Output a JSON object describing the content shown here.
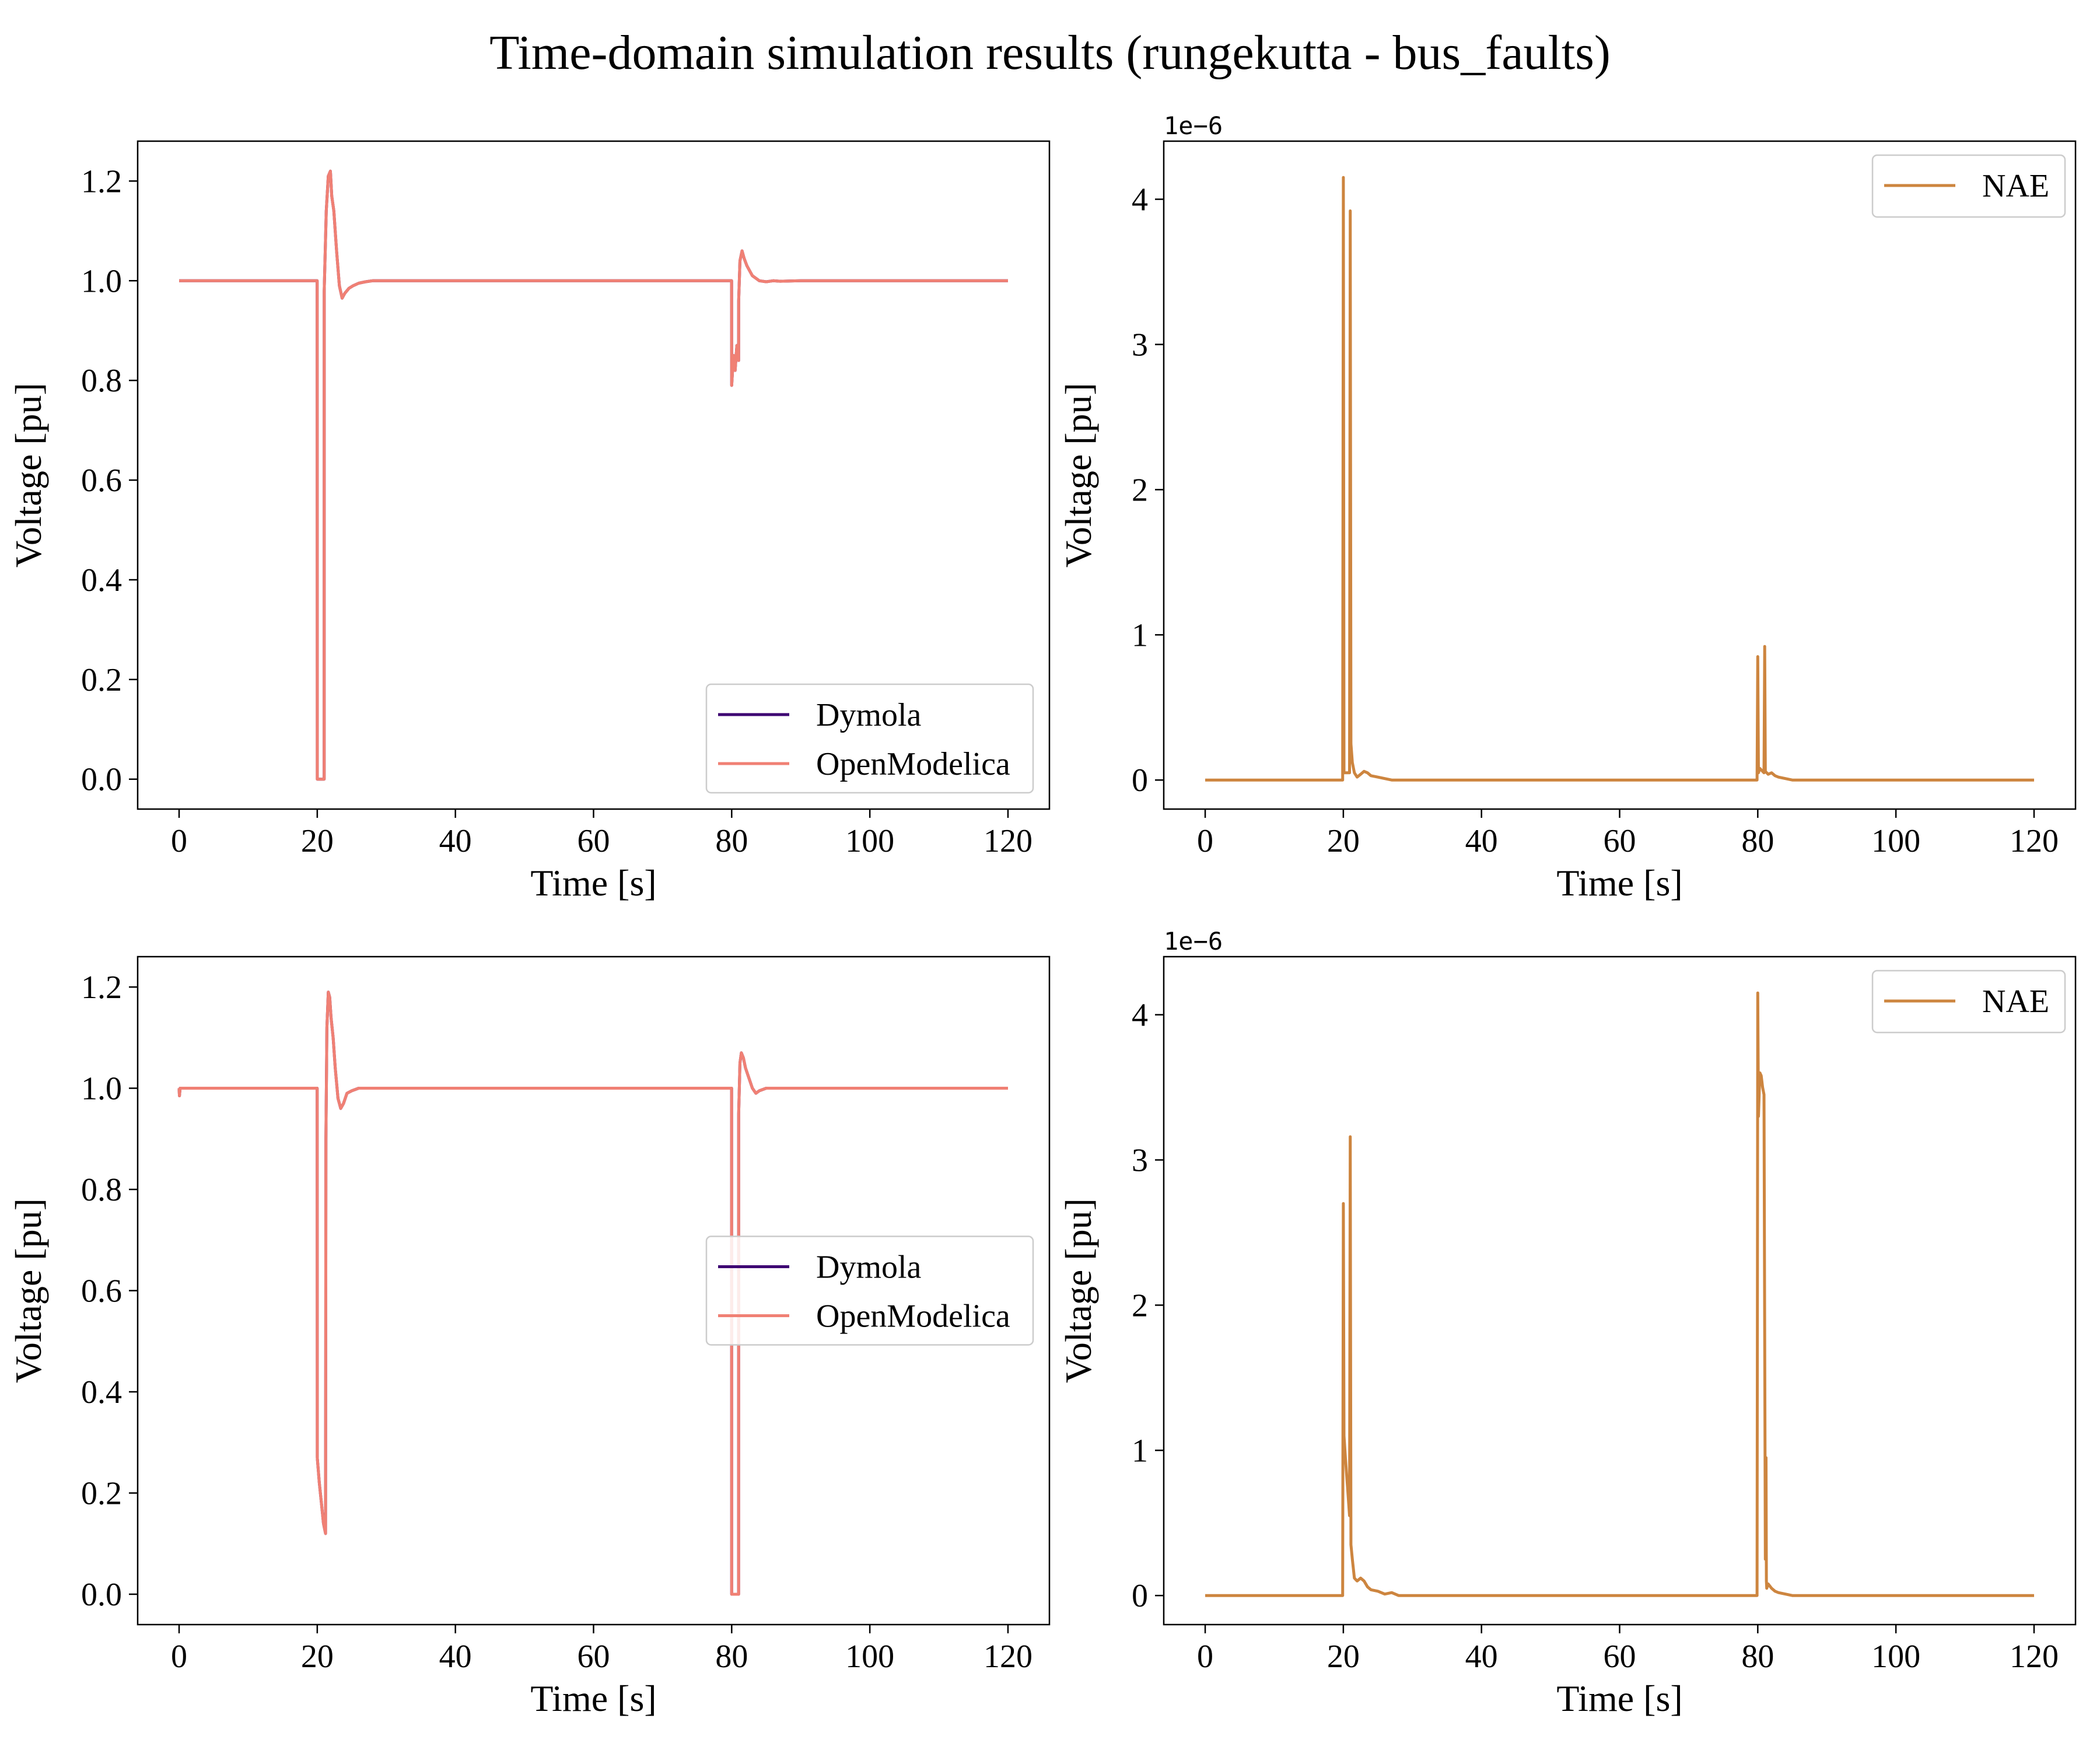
{
  "figure": {
    "title": "Time-domain simulation results (rungekutta - bus_faults)"
  },
  "colors": {
    "dymola": "#3d0072",
    "openmodelica": "#f08074",
    "nae": "#cd853f"
  },
  "chart_data": [
    {
      "type": "line",
      "xlabel": "Time [s]",
      "ylabel": "Voltage [pu]",
      "xlim": [
        -6,
        126
      ],
      "ylim": [
        -0.06,
        1.28
      ],
      "xticks": [
        0,
        20,
        40,
        60,
        80,
        100,
        120
      ],
      "yticks": [
        0.0,
        0.2,
        0.4,
        0.6,
        0.8,
        1.0,
        1.2
      ],
      "ytick_labels": [
        "0.0",
        "0.2",
        "0.4",
        "0.6",
        "0.8",
        "1.0",
        "1.2"
      ],
      "offset_label": "",
      "legend_position": "lower right",
      "series": [
        {
          "name": "Dymola",
          "color": "dymola",
          "x": [
            0,
            19.99,
            20.0,
            21.0,
            21.01,
            21.3,
            21.6,
            21.9,
            22.1,
            22.4,
            22.8,
            23.2,
            23.6,
            24.0,
            24.6,
            25.2,
            26.0,
            27.0,
            28.0,
            30.0,
            35.0,
            40.0,
            60.0,
            79.99,
            80.0,
            80.25,
            80.5,
            80.75,
            81.0,
            81.01,
            81.2,
            81.5,
            81.8,
            82.2,
            82.6,
            83.0,
            83.5,
            84.0,
            85.0,
            86.0,
            87.0,
            90.0,
            100.0,
            120.0
          ],
          "y": [
            1.0,
            1.0,
            0.0,
            0.0,
            0.98,
            1.14,
            1.21,
            1.22,
            1.17,
            1.14,
            1.06,
            0.99,
            0.965,
            0.975,
            0.985,
            0.99,
            0.995,
            0.998,
            1.0,
            1.0,
            1.0,
            1.0,
            1.0,
            1.0,
            0.79,
            0.85,
            0.82,
            0.87,
            0.84,
            0.96,
            1.04,
            1.06,
            1.045,
            1.03,
            1.02,
            1.01,
            1.005,
            1.0,
            0.998,
            1.0,
            0.999,
            1.0,
            1.0,
            1.0
          ]
        },
        {
          "name": "OpenModelica",
          "color": "openmodelica",
          "x": [
            0,
            19.99,
            20.0,
            21.0,
            21.01,
            21.3,
            21.6,
            21.9,
            22.1,
            22.4,
            22.8,
            23.2,
            23.6,
            24.0,
            24.6,
            25.2,
            26.0,
            27.0,
            28.0,
            30.0,
            35.0,
            40.0,
            60.0,
            79.99,
            80.0,
            80.25,
            80.5,
            80.75,
            81.0,
            81.01,
            81.2,
            81.5,
            81.8,
            82.2,
            82.6,
            83.0,
            83.5,
            84.0,
            85.0,
            86.0,
            87.0,
            90.0,
            100.0,
            120.0
          ],
          "y": [
            1.0,
            1.0,
            0.0,
            0.0,
            0.98,
            1.14,
            1.21,
            1.22,
            1.17,
            1.14,
            1.06,
            0.99,
            0.965,
            0.975,
            0.985,
            0.99,
            0.995,
            0.998,
            1.0,
            1.0,
            1.0,
            1.0,
            1.0,
            1.0,
            0.79,
            0.85,
            0.82,
            0.87,
            0.84,
            0.96,
            1.04,
            1.06,
            1.045,
            1.03,
            1.02,
            1.01,
            1.005,
            1.0,
            0.998,
            1.0,
            0.999,
            1.0,
            1.0,
            1.0
          ]
        }
      ]
    },
    {
      "type": "line",
      "xlabel": "Time [s]",
      "ylabel": "Voltage [pu]",
      "xlim": [
        -6,
        126
      ],
      "ylim": [
        -0.2,
        4.4
      ],
      "xticks": [
        0,
        20,
        40,
        60,
        80,
        100,
        120
      ],
      "yticks": [
        0,
        1,
        2,
        3,
        4
      ],
      "ytick_labels": [
        "0",
        "1",
        "2",
        "3",
        "4"
      ],
      "offset_label": "1e−6",
      "legend_position": "upper right",
      "series": [
        {
          "name": "NAE",
          "color": "nae",
          "x": [
            0,
            19.9,
            20.0,
            20.1,
            20.9,
            21.0,
            21.1,
            21.3,
            21.6,
            22.0,
            22.5,
            23.0,
            23.5,
            24.0,
            25.0,
            26.0,
            27.0,
            28.0,
            30.0,
            40.0,
            60.0,
            79.9,
            80.0,
            80.1,
            80.3,
            80.9,
            81.0,
            81.1,
            81.5,
            82.0,
            82.5,
            83.0,
            84.0,
            85.0,
            86.0,
            88.0,
            100.0,
            120.0
          ],
          "y": [
            0,
            0,
            4.15,
            0.05,
            0.05,
            3.92,
            0.25,
            0.12,
            0.05,
            0.02,
            0.04,
            0.06,
            0.05,
            0.03,
            0.02,
            0.01,
            0.0,
            0.0,
            0.0,
            0.0,
            0.0,
            0.0,
            0.85,
            0.05,
            0.08,
            0.05,
            0.92,
            0.06,
            0.04,
            0.05,
            0.03,
            0.02,
            0.01,
            0.0,
            0.0,
            0.0,
            0.0,
            0.0
          ]
        }
      ]
    },
    {
      "type": "line",
      "xlabel": "Time [s]",
      "ylabel": "Voltage [pu]",
      "xlim": [
        -6,
        126
      ],
      "ylim": [
        -0.06,
        1.26
      ],
      "xticks": [
        0,
        20,
        40,
        60,
        80,
        100,
        120
      ],
      "yticks": [
        0.0,
        0.2,
        0.4,
        0.6,
        0.8,
        1.0,
        1.2
      ],
      "ytick_labels": [
        "0.0",
        "0.2",
        "0.4",
        "0.6",
        "0.8",
        "1.0",
        "1.2"
      ],
      "offset_label": "",
      "legend_position": "center right",
      "series": [
        {
          "name": "Dymola",
          "color": "dymola",
          "x": [
            0,
            0.05,
            0.15,
            19.99,
            20.0,
            20.3,
            20.6,
            20.9,
            21.2,
            21.25,
            21.4,
            21.6,
            21.8,
            22.0,
            22.3,
            22.6,
            23.0,
            23.4,
            23.8,
            24.3,
            25.0,
            26.0,
            28.0,
            30.0,
            40.0,
            60.0,
            79.99,
            80.0,
            81.0,
            81.01,
            81.2,
            81.4,
            81.7,
            82.0,
            82.5,
            83.0,
            83.5,
            84.0,
            85.0,
            86.0,
            88.0,
            90.0,
            100.0,
            120.0
          ],
          "y": [
            1.0,
            0.985,
            1.0,
            1.0,
            0.27,
            0.22,
            0.18,
            0.14,
            0.12,
            0.9,
            1.12,
            1.19,
            1.18,
            1.14,
            1.1,
            1.04,
            0.98,
            0.96,
            0.97,
            0.99,
            0.995,
            1.0,
            1.0,
            1.0,
            1.0,
            1.0,
            1.0,
            0.0,
            0.0,
            0.95,
            1.05,
            1.07,
            1.06,
            1.04,
            1.02,
            1.0,
            0.99,
            0.995,
            1.0,
            1.0,
            1.0,
            1.0,
            1.0,
            1.0
          ]
        },
        {
          "name": "OpenModelica",
          "color": "openmodelica",
          "x": [
            0,
            0.05,
            0.15,
            19.99,
            20.0,
            20.3,
            20.6,
            20.9,
            21.2,
            21.25,
            21.4,
            21.6,
            21.8,
            22.0,
            22.3,
            22.6,
            23.0,
            23.4,
            23.8,
            24.3,
            25.0,
            26.0,
            28.0,
            30.0,
            40.0,
            60.0,
            79.99,
            80.0,
            81.0,
            81.01,
            81.2,
            81.4,
            81.7,
            82.0,
            82.5,
            83.0,
            83.5,
            84.0,
            85.0,
            86.0,
            88.0,
            90.0,
            100.0,
            120.0
          ],
          "y": [
            1.0,
            0.985,
            1.0,
            1.0,
            0.27,
            0.22,
            0.18,
            0.14,
            0.12,
            0.9,
            1.12,
            1.19,
            1.18,
            1.14,
            1.1,
            1.04,
            0.98,
            0.96,
            0.97,
            0.99,
            0.995,
            1.0,
            1.0,
            1.0,
            1.0,
            1.0,
            1.0,
            0.0,
            0.0,
            0.95,
            1.05,
            1.07,
            1.06,
            1.04,
            1.02,
            1.0,
            0.99,
            0.995,
            1.0,
            1.0,
            1.0,
            1.0,
            1.0,
            1.0
          ]
        }
      ]
    },
    {
      "type": "line",
      "xlabel": "Time [s]",
      "ylabel": "Voltage [pu]",
      "xlim": [
        -6,
        126
      ],
      "ylim": [
        -0.2,
        4.4
      ],
      "xticks": [
        0,
        20,
        40,
        60,
        80,
        100,
        120
      ],
      "yticks": [
        0,
        1,
        2,
        3,
        4
      ],
      "ytick_labels": [
        "0",
        "1",
        "2",
        "3",
        "4"
      ],
      "offset_label": "1e−6",
      "legend_position": "upper right",
      "series": [
        {
          "name": "NAE",
          "color": "nae",
          "x": [
            0,
            19.9,
            20.0,
            20.1,
            20.3,
            20.6,
            20.9,
            21.0,
            21.1,
            21.3,
            21.6,
            22.0,
            22.5,
            23.0,
            23.5,
            24.0,
            25.0,
            26.0,
            27.0,
            28.0,
            30.0,
            40.0,
            60.0,
            79.9,
            80.0,
            80.1,
            80.3,
            80.5,
            80.7,
            80.9,
            81.1,
            81.2,
            81.25,
            81.3,
            81.5,
            82.0,
            82.5,
            83.0,
            84.0,
            85.0,
            86.0,
            88.0,
            100.0,
            120.0
          ],
          "y": [
            0,
            0,
            2.7,
            1.1,
            0.95,
            0.75,
            0.55,
            3.16,
            0.35,
            0.25,
            0.12,
            0.1,
            0.12,
            0.1,
            0.06,
            0.04,
            0.03,
            0.01,
            0.02,
            0.0,
            0.0,
            0.0,
            0.0,
            0.0,
            4.15,
            3.3,
            3.6,
            3.58,
            3.5,
            3.45,
            0.25,
            0.95,
            0.1,
            0.05,
            0.08,
            0.05,
            0.03,
            0.02,
            0.01,
            0.0,
            0.0,
            0.0,
            0.0,
            0.0
          ]
        }
      ]
    }
  ]
}
